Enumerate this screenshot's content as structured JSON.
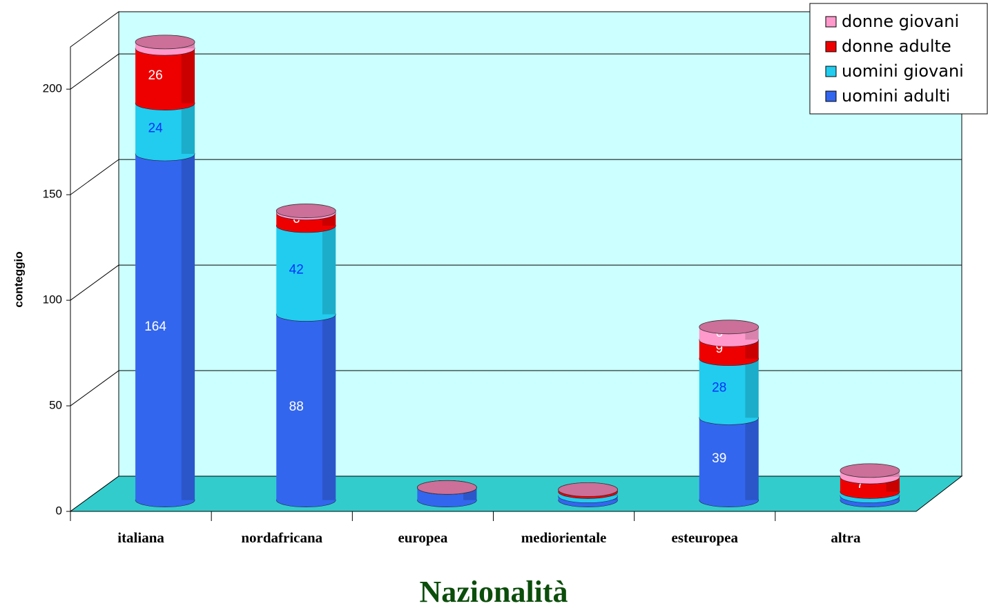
{
  "chart_data": {
    "type": "bar3d_stacked",
    "title": "Nazionalità",
    "y_label": "conteggio",
    "categories": [
      "italiana",
      "nordafricana",
      "europea",
      "mediorientale",
      "esteuropea",
      "altra"
    ],
    "series": [
      {
        "name": "uomini adulti",
        "color": "#3366ee",
        "label_color": "#ffffff",
        "values": [
          164,
          88,
          6,
          2,
          39,
          2
        ],
        "value_labels": [
          "164",
          "88",
          null,
          null,
          "39",
          null
        ]
      },
      {
        "name": "uomini giovani",
        "color": "#22ccee",
        "label_color": "#0033ff",
        "values": [
          24,
          42,
          0,
          2,
          28,
          2
        ],
        "value_labels": [
          "24",
          "42",
          null,
          null,
          "28",
          null
        ]
      },
      {
        "name": "donne adulte",
        "color": "#ee0000",
        "label_color": "#ffffff",
        "values": [
          26,
          6,
          0,
          1,
          9,
          7
        ],
        "value_labels": [
          "26",
          "6",
          null,
          null,
          "9",
          "7"
        ]
      },
      {
        "name": "donne giovani",
        "color": "#ff99cc",
        "label_color": "#ffffff",
        "values": [
          3,
          1,
          0,
          0,
          6,
          3
        ],
        "value_labels": [
          "3",
          null,
          null,
          null,
          "6",
          "3"
        ]
      }
    ],
    "cap_color": "#cc6f99",
    "ylim": [
      0,
      220
    ],
    "yticks": [
      0,
      50,
      100,
      150,
      200
    ],
    "grid": true,
    "legend": "top-right"
  }
}
